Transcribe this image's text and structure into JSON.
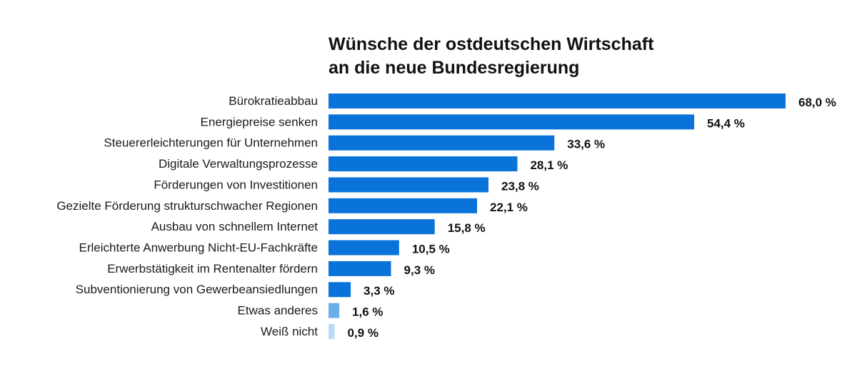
{
  "chart_data": {
    "type": "bar",
    "orientation": "horizontal",
    "title": "Wünsche der ostdeutschen Wirtschaft an die neue Bundesregierung",
    "title_lines": [
      "Wünsche der ostdeutschen Wirtschaft",
      "an die neue Bundesregierung"
    ],
    "xlabel": "",
    "ylabel": "",
    "xlim": [
      0,
      68
    ],
    "grid": false,
    "legend": "none",
    "categories": [
      "Bürokratieabbau",
      "Energiepreise senken",
      "Steuererleichterungen für Unternehmen",
      "Digitale Verwaltungsprozesse",
      "Förderungen von Investitionen",
      "Gezielte Förderung strukturschwacher Regionen",
      "Ausbau von schnellem Internet",
      "Erleichterte Anwerbung Nicht-EU-Fachkräfte",
      "Erwerbstätigkeit im Rentenalter fördern",
      "Subventionierung von Gewerbeansiedlungen",
      "Etwas anderes",
      "Weiß nicht"
    ],
    "values": [
      68.0,
      54.4,
      33.6,
      28.1,
      23.8,
      22.1,
      15.8,
      10.5,
      9.3,
      3.3,
      1.6,
      0.9
    ],
    "value_labels": [
      "68,0 %",
      "54,4 %",
      "33,6 %",
      "28,1 %",
      "23,8 %",
      "22,1 %",
      "15,8 %",
      "10,5 %",
      "9,3 %",
      "3,3 %",
      "1,6 %",
      "0,9 %"
    ],
    "bar_colors": [
      "#0a73d9",
      "#0a73d9",
      "#0a73d9",
      "#0a73d9",
      "#0a73d9",
      "#0a73d9",
      "#0a73d9",
      "#0a73d9",
      "#0a73d9",
      "#0a73d9",
      "#6aafe8",
      "#b9dbf6"
    ]
  }
}
